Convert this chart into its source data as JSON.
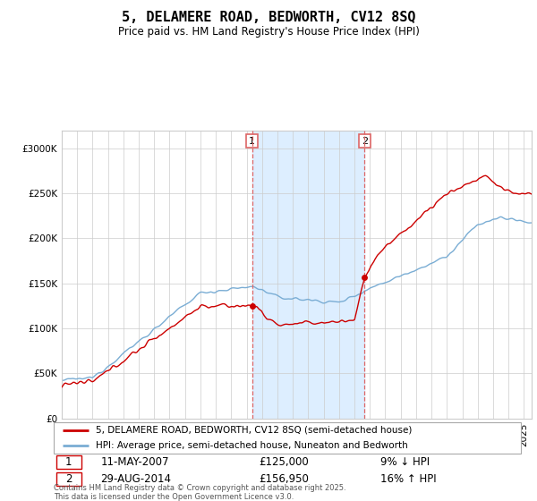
{
  "title": "5, DELAMERE ROAD, BEDWORTH, CV12 8SQ",
  "subtitle": "Price paid vs. HM Land Registry's House Price Index (HPI)",
  "legend_line1": "5, DELAMERE ROAD, BEDWORTH, CV12 8SQ (semi-detached house)",
  "legend_line2": "HPI: Average price, semi-detached house, Nuneaton and Bedworth",
  "sale1_date": "11-MAY-2007",
  "sale1_price": "£125,000",
  "sale1_hpi": "9% ↓ HPI",
  "sale1_year": 2007.36,
  "sale1_price_val": 125000,
  "sale2_date": "29-AUG-2014",
  "sale2_price": "£156,950",
  "sale2_hpi": "16% ↑ HPI",
  "sale2_year": 2014.66,
  "sale2_price_val": 156950,
  "footer": "Contains HM Land Registry data © Crown copyright and database right 2025.\nThis data is licensed under the Open Government Licence v3.0.",
  "property_color": "#cc0000",
  "hpi_color": "#7aadd4",
  "highlight_color": "#ddeeff",
  "vline_color": "#dd6666",
  "ylim": [
    0,
    320000
  ],
  "xlim_start": 1995,
  "xlim_end": 2025.5
}
